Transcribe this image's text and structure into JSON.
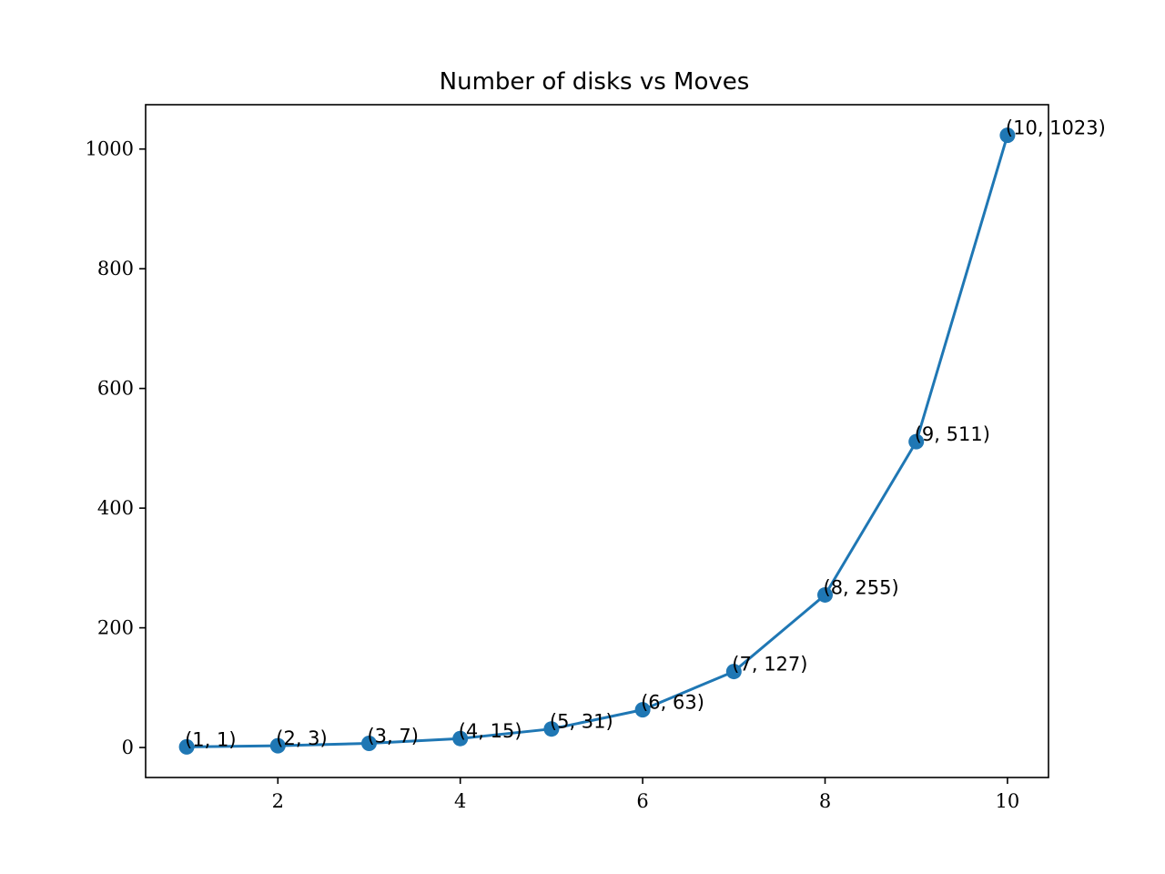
{
  "chart_data": {
    "type": "line",
    "title": "Number of disks vs Moves",
    "xlabel": "",
    "ylabel": "",
    "x": [
      1,
      2,
      3,
      4,
      5,
      6,
      7,
      8,
      9,
      10
    ],
    "series": [
      {
        "values": [
          1,
          3,
          7,
          15,
          31,
          63,
          127,
          255,
          511,
          1023
        ],
        "color": "#1f77b4",
        "marker": "circle"
      }
    ],
    "point_labels": [
      "(1, 1)",
      "(2, 3)",
      "(3, 7)",
      "(4, 15)",
      "(5, 31)",
      "(6, 63)",
      "(7, 127)",
      "(8, 255)",
      "(9, 511)",
      "(10, 1023)"
    ],
    "xlim": [
      0.55,
      10.45
    ],
    "ylim": [
      -50.1,
      1074.1
    ],
    "xticks": [
      2,
      4,
      6,
      8,
      10
    ],
    "xtick_labels": [
      "2",
      "4",
      "6",
      "8",
      "10"
    ],
    "yticks": [
      0,
      200,
      400,
      600,
      800,
      1000
    ],
    "ytick_labels": [
      "0",
      "200",
      "400",
      "600",
      "800",
      "1000"
    ],
    "grid": false,
    "legend": "none"
  }
}
